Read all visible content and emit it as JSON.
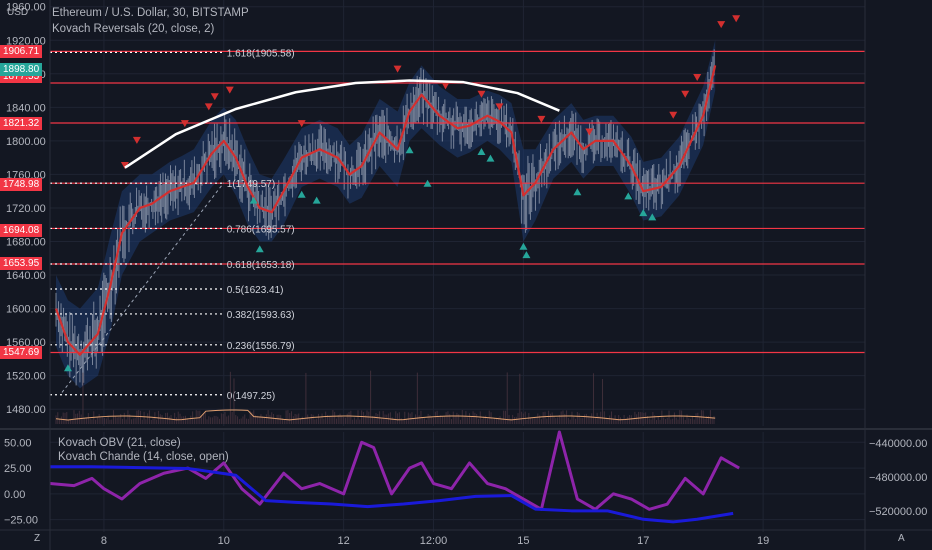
{
  "header": {
    "currency": "USD",
    "symbol_line": "Ethereum / U.S. Dollar, 30, BITSTAMP",
    "indicator_main": "Kovach Reversals (20, close, 2)",
    "indicator_obv": "Kovach OBV (21, close)",
    "indicator_chande": "Kovach Chande (14, close, open)"
  },
  "footer": {
    "z_button": "Z",
    "a_button": "A"
  },
  "colors": {
    "background": "#131722",
    "grid": "#1f2433",
    "price_line": "#d32f2f",
    "band": "#1e3a6e",
    "candle": "#9aa3b4",
    "bull_marker": "#26a69a",
    "bear_marker": "#d32f2f",
    "level_line": "#f23645",
    "arc": "#ffffff",
    "obv_line": "#1a1ad9",
    "chande_line": "#8e24aa",
    "volume_line": "#e0a070",
    "last_price_bg": "#26a69a"
  },
  "chart_data": [
    {
      "type": "line",
      "name": "price-panel",
      "x_ticks": [
        "8",
        "10",
        "12",
        "12:00",
        "15",
        "17",
        "19"
      ],
      "x_tick_days": [
        8.0,
        10.0,
        12.0,
        13.5,
        15.0,
        17.0,
        19.0
      ],
      "x_range_days": [
        7.1,
        20.7
      ],
      "y_ticks": [
        1480,
        1520,
        1560,
        1600,
        1640,
        1680,
        1720,
        1760,
        1800,
        1840,
        1880,
        1920,
        1960
      ],
      "ylim": [
        1460,
        1968
      ],
      "level_labels": [
        {
          "label": "1877.55",
          "value": 1877.55
        },
        {
          "label": "1906.71",
          "value": 1906.71
        },
        {
          "label": "1821.32",
          "value": 1821.32
        },
        {
          "label": "1748.98",
          "value": 1748.98
        },
        {
          "label": "1694.08",
          "value": 1694.08
        },
        {
          "label": "1653.95",
          "value": 1653.95
        },
        {
          "label": "1547.69",
          "value": 1547.69
        }
      ],
      "last_price": {
        "label": "1898.80",
        "value": 1898.8
      },
      "horizontal_levels": [
        1906.71,
        1869.0,
        1821.32,
        1749.57,
        1695.57,
        1653.18,
        1547.69
      ],
      "fib_levels": [
        {
          "label": "1.618(1905.58)",
          "value": 1905.58
        },
        {
          "label": "1(1749.57)",
          "value": 1749.57
        },
        {
          "label": "0.786(1695.57)",
          "value": 1695.57
        },
        {
          "label": "0.618(1653.18)",
          "value": 1653.18
        },
        {
          "label": "0.5(1623.41)",
          "value": 1623.41
        },
        {
          "label": "0.382(1593.63)",
          "value": 1593.63
        },
        {
          "label": "0.236(1556.79)",
          "value": 1556.79
        },
        {
          "label": "0(1497.25)",
          "value": 1497.25
        }
      ],
      "close_series": {
        "x": [
          7.2,
          7.4,
          7.6,
          7.9,
          8.1,
          8.3,
          8.6,
          8.8,
          9.1,
          9.3,
          9.5,
          9.8,
          10.0,
          10.2,
          10.4,
          10.6,
          10.8,
          11.0,
          11.3,
          11.6,
          11.9,
          12.1,
          12.3,
          12.6,
          12.9,
          13.1,
          13.3,
          13.6,
          13.9,
          14.1,
          14.4,
          14.6,
          14.8,
          15.0,
          15.2,
          15.5,
          15.8,
          16.0,
          16.2,
          16.5,
          16.8,
          17.0,
          17.3,
          17.6,
          17.8,
          18.0,
          18.2
        ],
        "y": [
          1600,
          1560,
          1545,
          1570,
          1625,
          1690,
          1720,
          1725,
          1740,
          1745,
          1750,
          1785,
          1800,
          1780,
          1745,
          1720,
          1715,
          1740,
          1780,
          1790,
          1780,
          1760,
          1770,
          1810,
          1790,
          1835,
          1855,
          1830,
          1815,
          1818,
          1830,
          1823,
          1810,
          1735,
          1750,
          1790,
          1810,
          1790,
          1800,
          1800,
          1770,
          1740,
          1745,
          1770,
          1800,
          1830,
          1890
        ]
      },
      "band_upper": [
        1640,
        1610,
        1600,
        1625,
        1685,
        1740,
        1760,
        1760,
        1775,
        1782,
        1790,
        1825,
        1840,
        1825,
        1790,
        1760,
        1755,
        1778,
        1815,
        1825,
        1815,
        1795,
        1808,
        1850,
        1835,
        1870,
        1890,
        1865,
        1850,
        1850,
        1860,
        1855,
        1845,
        1790,
        1790,
        1825,
        1845,
        1825,
        1830,
        1830,
        1805,
        1775,
        1780,
        1805,
        1835,
        1865,
        1920
      ],
      "band_lower": [
        1555,
        1520,
        1505,
        1520,
        1570,
        1640,
        1680,
        1690,
        1705,
        1710,
        1715,
        1745,
        1760,
        1735,
        1700,
        1680,
        1680,
        1700,
        1745,
        1755,
        1745,
        1725,
        1732,
        1770,
        1745,
        1800,
        1815,
        1795,
        1780,
        1786,
        1800,
        1790,
        1775,
        1680,
        1705,
        1755,
        1775,
        1755,
        1770,
        1770,
        1735,
        1705,
        1710,
        1735,
        1765,
        1795,
        1860
      ],
      "bear_markers": [
        {
          "x": 8.35,
          "y": 1770
        },
        {
          "x": 8.55,
          "y": 1800
        },
        {
          "x": 9.35,
          "y": 1820
        },
        {
          "x": 9.75,
          "y": 1840
        },
        {
          "x": 9.85,
          "y": 1852
        },
        {
          "x": 10.1,
          "y": 1860
        },
        {
          "x": 11.3,
          "y": 1820
        },
        {
          "x": 12.9,
          "y": 1885
        },
        {
          "x": 13.7,
          "y": 1865
        },
        {
          "x": 14.3,
          "y": 1855
        },
        {
          "x": 14.6,
          "y": 1840
        },
        {
          "x": 15.3,
          "y": 1825
        },
        {
          "x": 16.1,
          "y": 1810
        },
        {
          "x": 17.5,
          "y": 1830
        },
        {
          "x": 17.7,
          "y": 1855
        },
        {
          "x": 17.9,
          "y": 1875
        },
        {
          "x": 18.3,
          "y": 1938
        },
        {
          "x": 18.55,
          "y": 1945
        }
      ],
      "bull_markers": [
        {
          "x": 7.4,
          "y": 1530
        },
        {
          "x": 10.5,
          "y": 1730
        },
        {
          "x": 10.6,
          "y": 1672
        },
        {
          "x": 11.3,
          "y": 1737
        },
        {
          "x": 11.55,
          "y": 1730
        },
        {
          "x": 13.1,
          "y": 1790
        },
        {
          "x": 13.4,
          "y": 1750
        },
        {
          "x": 14.3,
          "y": 1788
        },
        {
          "x": 14.45,
          "y": 1780
        },
        {
          "x": 15.0,
          "y": 1675
        },
        {
          "x": 15.05,
          "y": 1665
        },
        {
          "x": 15.9,
          "y": 1740
        },
        {
          "x": 16.75,
          "y": 1735
        },
        {
          "x": 17.0,
          "y": 1715
        },
        {
          "x": 17.15,
          "y": 1710
        }
      ],
      "arc": {
        "x": [
          8.35,
          9.2,
          10.2,
          11.2,
          12.2,
          13.1,
          14.0,
          14.9,
          15.6
        ],
        "y": [
          1768,
          1808,
          1838,
          1858,
          1869,
          1872,
          1870,
          1857,
          1836
        ]
      }
    },
    {
      "type": "line",
      "name": "oscillator-panel",
      "left_ticks": [
        50.0,
        25.0,
        0.0,
        -25.0
      ],
      "left_tick_labels": [
        "50.00",
        "25.00",
        "0.00",
        "−25.00"
      ],
      "left_range": [
        -37,
        60
      ],
      "right_ticks": [
        -440000,
        -480000,
        -520000
      ],
      "right_tick_labels": [
        "−440000.00",
        "−480000.00",
        "−520000.00"
      ],
      "right_range": [
        -545000,
        -427000
      ],
      "chande": {
        "x": [
          7.1,
          7.5,
          7.8,
          8.0,
          8.3,
          8.6,
          9.0,
          9.4,
          9.7,
          10.0,
          10.3,
          10.6,
          11.0,
          11.3,
          11.6,
          12.0,
          12.3,
          12.5,
          12.8,
          13.1,
          13.3,
          13.5,
          13.8,
          14.1,
          14.4,
          14.7,
          15.0,
          15.3,
          15.6,
          15.9,
          16.2,
          16.5,
          16.8,
          17.1,
          17.4,
          17.7,
          18.0,
          18.3,
          18.6
        ],
        "y": [
          10,
          8,
          15,
          5,
          -5,
          10,
          20,
          25,
          15,
          30,
          5,
          -10,
          20,
          5,
          10,
          0,
          50,
          45,
          0,
          25,
          30,
          10,
          5,
          30,
          10,
          5,
          -5,
          -15,
          60,
          -5,
          -15,
          0,
          -5,
          -15,
          -10,
          15,
          0,
          35,
          25
        ]
      },
      "obv": {
        "x": [
          7.1,
          7.8,
          8.6,
          9.4,
          10.2,
          10.7,
          11.2,
          11.8,
          12.4,
          13.0,
          13.6,
          14.2,
          14.8,
          15.2,
          15.8,
          16.4,
          17.0,
          17.5,
          17.9,
          18.5
        ],
        "y": [
          -468000,
          -468000,
          -469000,
          -470000,
          -478000,
          -508000,
          -510000,
          -512000,
          -515000,
          -512000,
          -508000,
          -503000,
          -502000,
          -518000,
          -520000,
          -520000,
          -530000,
          -533000,
          -530000,
          -523000
        ]
      }
    }
  ]
}
